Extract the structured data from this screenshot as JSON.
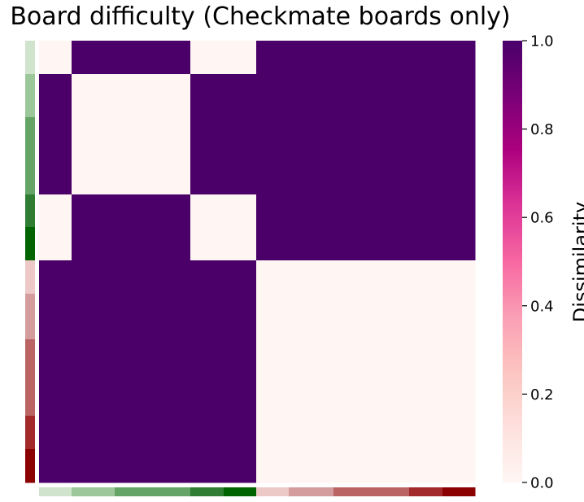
{
  "chart_data": {
    "type": "heatmap",
    "title": "Board difficulty (Checkmate boards only)",
    "row_labels": [],
    "col_labels": [],
    "difficulty_segments": [
      {
        "color": "#d0e3cd",
        "weight": 1
      },
      {
        "color": "#9cc79a",
        "weight": 1.3
      },
      {
        "color": "#65a467",
        "weight": 2.3
      },
      {
        "color": "#2e7d32",
        "weight": 1
      },
      {
        "color": "#006400",
        "weight": 1
      },
      {
        "color": "#ecc9c7",
        "weight": 1
      },
      {
        "color": "#d49c9c",
        "weight": 1.35
      },
      {
        "color": "#ba6564",
        "weight": 2.3
      },
      {
        "color": "#a22a2a",
        "weight": 1
      },
      {
        "color": "#8b0000",
        "weight": 1
      }
    ],
    "matrix": [
      [
        0,
        1,
        1,
        0,
        0,
        1,
        1,
        1,
        1,
        1
      ],
      [
        1,
        0,
        0,
        1,
        1,
        1,
        1,
        1,
        1,
        1
      ],
      [
        1,
        0,
        0,
        1,
        1,
        1,
        1,
        1,
        1,
        1
      ],
      [
        0,
        1,
        1,
        0,
        0,
        1,
        1,
        1,
        1,
        1
      ],
      [
        0,
        1,
        1,
        0,
        0,
        1,
        1,
        1,
        1,
        1
      ],
      [
        1,
        1,
        1,
        1,
        1,
        0,
        0,
        0,
        0,
        0
      ],
      [
        1,
        1,
        1,
        1,
        1,
        0,
        0,
        0,
        0,
        0
      ],
      [
        1,
        1,
        1,
        1,
        1,
        0,
        0,
        0,
        0,
        0
      ],
      [
        1,
        1,
        1,
        1,
        1,
        0,
        0,
        0,
        0,
        0
      ],
      [
        1,
        1,
        1,
        1,
        1,
        0,
        0,
        0,
        0,
        0
      ]
    ],
    "colorbar": {
      "label": "Dissimilarity",
      "range": [
        0.0,
        1.0
      ],
      "ticks": [
        "0.0",
        "0.2",
        "0.4",
        "0.6",
        "0.8",
        "1.0"
      ],
      "colormap": "RdPu",
      "colormap_stops": [
        "#fff7f3",
        "#fde0dd",
        "#fcc5c0",
        "#fa9fb5",
        "#f768a1",
        "#dd3497",
        "#ae017e",
        "#7a0177",
        "#49006a"
      ]
    },
    "colors": {
      "low": "#fff5f2",
      "high": "#4a0068"
    },
    "grid": false
  }
}
